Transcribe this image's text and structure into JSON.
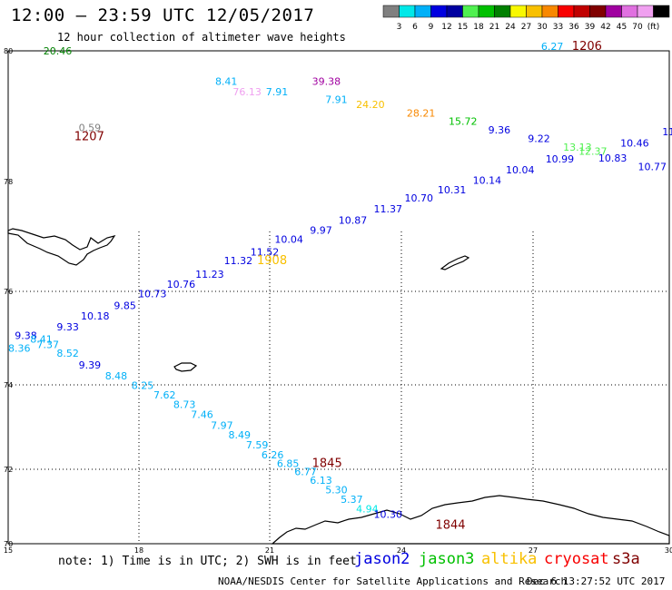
{
  "title": "12:00 – 23:59 UTC 12/05/2017",
  "subtitle": "12 hour collection of altimeter wave heights",
  "legend": {
    "colors": [
      "#808080",
      "#00e8e8",
      "#00b0f8",
      "#0000e0",
      "#0000a0",
      "#50f050",
      "#00c000",
      "#008000",
      "#f8f800",
      "#f8c000",
      "#f88800",
      "#f80000",
      "#c00000",
      "#800000",
      "#a000a0",
      "#e070e0",
      "#f0a0f0",
      "#000000"
    ],
    "ticks": [
      "3",
      "6",
      "9",
      "12",
      "15",
      "18",
      "21",
      "24",
      "27",
      "30",
      "33",
      "36",
      "39",
      "42",
      "45",
      "70",
      "(ft)"
    ]
  },
  "axes": {
    "lat_labels": [
      "80",
      "78",
      "76",
      "74",
      "72",
      "70"
    ],
    "lon_labels": [
      "15",
      "18",
      "21",
      "24",
      "27",
      "30"
    ]
  },
  "swh_labels": [
    {
      "text": "20.46",
      "color": "#008000",
      "lat": 79.92,
      "lon": 15.8
    },
    {
      "text": "6.27",
      "color": "#00b0f8",
      "lat": 80.02,
      "lon": 27.1
    },
    {
      "text": "8.41",
      "color": "#00b0f8",
      "lat": 79.2,
      "lon": 19.7
    },
    {
      "text": "76.13",
      "color": "#f0a0f0",
      "lat": 78.96,
      "lon": 20.1
    },
    {
      "text": "7.91",
      "color": "#00b0f8",
      "lat": 78.96,
      "lon": 20.85
    },
    {
      "text": "39.38",
      "color": "#a000a0",
      "lat": 79.2,
      "lon": 21.9
    },
    {
      "text": "7.91",
      "color": "#00b0f8",
      "lat": 78.78,
      "lon": 22.2
    },
    {
      "text": "24.20",
      "color": "#f8c000",
      "lat": 78.66,
      "lon": 22.9
    },
    {
      "text": "28.21",
      "color": "#f88800",
      "lat": 78.46,
      "lon": 24.05
    },
    {
      "text": "15.72",
      "color": "#00c000",
      "lat": 78.27,
      "lon": 25.0
    },
    {
      "text": "9.36",
      "color": "#0000e0",
      "lat": 78.06,
      "lon": 25.9
    },
    {
      "text": "9.22",
      "color": "#0000e0",
      "lat": 77.86,
      "lon": 26.8
    },
    {
      "text": "13.13",
      "color": "#50f050",
      "lat": 77.66,
      "lon": 27.6
    },
    {
      "text": "12.37",
      "color": "#50f050",
      "lat": 77.56,
      "lon": 27.95
    },
    {
      "text": "10.46",
      "color": "#0000e0",
      "lat": 77.76,
      "lon": 28.9
    },
    {
      "text": "11",
      "color": "#0000e0",
      "lat": 78.02,
      "lon": 29.85
    },
    {
      "text": "10.83",
      "color": "#0000e0",
      "lat": 77.4,
      "lon": 28.4
    },
    {
      "text": "10.77",
      "color": "#0000e0",
      "lat": 77.2,
      "lon": 29.3
    },
    {
      "text": "10.99",
      "color": "#0000e0",
      "lat": 77.38,
      "lon": 27.2
    },
    {
      "text": "10.04",
      "color": "#0000e0",
      "lat": 77.13,
      "lon": 26.3
    },
    {
      "text": "10.14",
      "color": "#0000e0",
      "lat": 76.88,
      "lon": 25.55
    },
    {
      "text": "10.31",
      "color": "#0000e0",
      "lat": 76.66,
      "lon": 24.75
    },
    {
      "text": "10.70",
      "color": "#0000e0",
      "lat": 76.47,
      "lon": 24.0
    },
    {
      "text": "11.37",
      "color": "#0000e0",
      "lat": 76.21,
      "lon": 23.3
    },
    {
      "text": "10.87",
      "color": "#0000e0",
      "lat": 75.95,
      "lon": 22.5
    },
    {
      "text": "9.97",
      "color": "#0000e0",
      "lat": 75.71,
      "lon": 21.85
    },
    {
      "text": "10.04",
      "color": "#0000e0",
      "lat": 75.5,
      "lon": 21.05
    },
    {
      "text": "11.52",
      "color": "#0000e0",
      "lat": 75.2,
      "lon": 20.5
    },
    {
      "text": "11.32",
      "color": "#0000e0",
      "lat": 75.0,
      "lon": 19.9
    },
    {
      "text": "11.23",
      "color": "#0000e0",
      "lat": 74.68,
      "lon": 19.25
    },
    {
      "text": "10.76",
      "color": "#0000e0",
      "lat": 74.45,
      "lon": 18.6
    },
    {
      "text": "10.73",
      "color": "#0000e0",
      "lat": 74.22,
      "lon": 17.95
    },
    {
      "text": "9.85",
      "color": "#0000e0",
      "lat": 73.95,
      "lon": 17.4
    },
    {
      "text": "10.18",
      "color": "#0000e0",
      "lat": 73.7,
      "lon": 16.65
    },
    {
      "text": "9.33",
      "color": "#0000e0",
      "lat": 73.45,
      "lon": 16.1
    },
    {
      "text": "9.38",
      "color": "#0000e0",
      "lat": 73.25,
      "lon": 15.15
    },
    {
      "text": "8.41",
      "color": "#00b0f8",
      "lat": 73.16,
      "lon": 15.5
    },
    {
      "text": "7.37",
      "color": "#00b0f8",
      "lat": 73.03,
      "lon": 15.65
    },
    {
      "text": "8.36",
      "color": "#00b0f8",
      "lat": 72.95,
      "lon": 15.0
    },
    {
      "text": "8.52",
      "color": "#00b0f8",
      "lat": 72.83,
      "lon": 16.1
    },
    {
      "text": "9.39",
      "color": "#0000e0",
      "lat": 72.55,
      "lon": 16.6
    },
    {
      "text": "8.48",
      "color": "#00b0f8",
      "lat": 72.3,
      "lon": 17.2
    },
    {
      "text": "8.25",
      "color": "#00b0f8",
      "lat": 72.07,
      "lon": 17.8
    },
    {
      "text": "7.62",
      "color": "#00b0f8",
      "lat": 71.85,
      "lon": 18.3
    },
    {
      "text": "8.73",
      "color": "#00b0f8",
      "lat": 71.63,
      "lon": 18.75
    },
    {
      "text": "7.46",
      "color": "#00b0f8",
      "lat": 71.39,
      "lon": 19.15
    },
    {
      "text": "7.97",
      "color": "#00b0f8",
      "lat": 71.14,
      "lon": 19.6
    },
    {
      "text": "8.49",
      "color": "#00b0f8",
      "lat": 70.91,
      "lon": 20.0
    },
    {
      "text": "7.59",
      "color": "#00b0f8",
      "lat": 70.68,
      "lon": 20.4
    },
    {
      "text": "6.26",
      "color": "#00b0f8",
      "lat": 70.45,
      "lon": 20.75
    },
    {
      "text": "6.85",
      "color": "#00b0f8",
      "lat": 70.24,
      "lon": 21.1
    },
    {
      "text": "6.77",
      "color": "#00b0f8",
      "lat": 70.05,
      "lon": 21.5
    },
    {
      "text": "6.13",
      "color": "#00b0f8",
      "lat": 69.85,
      "lon": 21.85
    },
    {
      "text": "5.30",
      "color": "#00b0f8",
      "lat": 69.63,
      "lon": 22.2
    },
    {
      "text": "5.37",
      "color": "#00b0f8",
      "lat": 69.4,
      "lon": 22.55
    },
    {
      "text": "4.94",
      "color": "#00e8e8",
      "lat": 69.18,
      "lon": 22.9
    },
    {
      "text": "10.30",
      "color": "#0000e0",
      "lat": 69.05,
      "lon": 23.3
    },
    {
      "text": "0.59",
      "color": "#808080",
      "lat": 78.12,
      "lon": 16.6
    }
  ],
  "time_labels": [
    {
      "text": "1206",
      "color": "#800000",
      "lat": 80.02,
      "lon": 27.8
    },
    {
      "text": "1207",
      "color": "#800000",
      "lat": 77.9,
      "lon": 16.5
    },
    {
      "text": "1908",
      "color": "#f8c000",
      "lat": 75.0,
      "lon": 20.65
    },
    {
      "text": "1845",
      "color": "#800000",
      "lat": 70.24,
      "lon": 21.9
    },
    {
      "text": "1844",
      "color": "#800000",
      "lat": 68.8,
      "lon": 24.7
    }
  ],
  "note": "note: 1) Time is in UTC; 2) SWH is in feet",
  "satellites": [
    {
      "name": "jason2",
      "color": "#0000e0"
    },
    {
      "name": "jason3",
      "color": "#00c000"
    },
    {
      "name": "altika",
      "color": "#f8c000"
    },
    {
      "name": "cryosat",
      "color": "#f80000"
    },
    {
      "name": "s3a",
      "color": "#800000"
    }
  ],
  "credit": "NOAA/NESDIS Center for Satellite Applications and Research",
  "timestamp": "Dec  6 13:27:52 UTC 2017"
}
